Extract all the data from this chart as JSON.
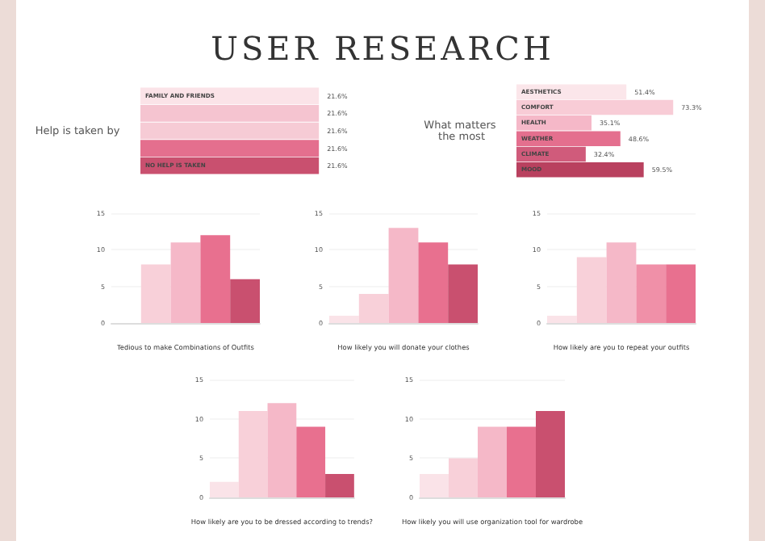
{
  "chart_data": [
    {
      "type": "bar",
      "orientation": "horizontal",
      "tick_labels": "y",
      "title": "USER RESEARCH",
      "ylabel": "Help is taken by",
      "categories": [
        "FAMILY AND FRIENDS",
        null,
        null,
        null,
        "NO HELP IS TAKEN"
      ],
      "values": [
        21.6,
        21.6,
        21.6,
        21.6,
        21.6
      ],
      "colors": [
        "#fbe3e8",
        "#f5c4d0",
        "#f6cbd5",
        "#e46f8e",
        "#c9506f"
      ],
      "value_labels": [
        "21.6%",
        "21.6%",
        "21.6%",
        "21.6%",
        "21.6%"
      ]
    },
    {
      "type": "bar",
      "orientation": "horizontal",
      "tick_labels": "y",
      "ylabel": "What matters the most",
      "categories": [
        "AESTHETICS",
        "COMFORT",
        "HEALTH",
        "WEATHER",
        "CLIMATE",
        "MOOD"
      ],
      "values": [
        51.4,
        73.3,
        35.1,
        48.6,
        32.4,
        59.5
      ],
      "colors": [
        "#fbe6ea",
        "#f8ccd6",
        "#f5b8c8",
        "#e46f8e",
        "#d05b7b",
        "#b9415f"
      ],
      "value_labels": [
        "51.4%",
        "73.3%",
        "35.1%",
        "48.6%",
        "32.4%",
        "59.5%"
      ]
    },
    {
      "type": "bar",
      "xlabel": "Tedious to make Combinations of Outfits",
      "categories": [
        null,
        null,
        null,
        null,
        null
      ],
      "values": [
        0,
        8,
        11,
        12,
        6
      ],
      "colors": [
        "#fae3e8",
        "#f8d0d9",
        "#f5b8c8",
        "#e8708f",
        "#c9506f"
      ],
      "ylim": [
        0,
        15
      ],
      "yticks": [
        0,
        5,
        10,
        15
      ],
      "grid": "y"
    },
    {
      "type": "bar",
      "xlabel": "How likely you will donate your clothes",
      "categories": [
        null,
        null,
        null,
        null,
        null
      ],
      "values": [
        1,
        4,
        13,
        11,
        8
      ],
      "colors": [
        "#fae3e8",
        "#f8d0d9",
        "#f5b8c8",
        "#e8708f",
        "#c9506f"
      ],
      "ylim": [
        0,
        15
      ],
      "yticks": [
        0,
        5,
        10,
        15
      ],
      "grid": "y"
    },
    {
      "type": "bar",
      "xlabel": "How likely are you to repeat your outfits",
      "categories": [
        null,
        null,
        null,
        null,
        null
      ],
      "values": [
        1,
        9,
        11,
        8,
        8
      ],
      "colors": [
        "#fae3e8",
        "#f8d0d9",
        "#f5b8c8",
        "#f090a8",
        "#e8708f"
      ],
      "ylim": [
        0,
        15
      ],
      "yticks": [
        0,
        5,
        10,
        15
      ],
      "grid": "y"
    },
    {
      "type": "bar",
      "xlabel": "How likely are you to be dressed according to trends?",
      "categories": [
        null,
        null,
        null,
        null,
        null
      ],
      "values": [
        2,
        11,
        12,
        9,
        3
      ],
      "colors": [
        "#fae3e8",
        "#f8d0d9",
        "#f5b8c8",
        "#e8708f",
        "#c9506f"
      ],
      "ylim": [
        0,
        15
      ],
      "yticks": [
        0,
        5,
        10,
        15
      ],
      "grid": "y"
    },
    {
      "type": "bar",
      "xlabel": "How likely you will use organization tool for wardrobe",
      "categories": [
        null,
        null,
        null,
        null,
        null
      ],
      "values": [
        3,
        5,
        9,
        9,
        11
      ],
      "colors": [
        "#fae3e8",
        "#f8d0d9",
        "#f5b8c8",
        "#e8708f",
        "#c9506f"
      ],
      "ylim": [
        0,
        15
      ],
      "yticks": [
        0,
        5,
        10,
        15
      ],
      "grid": "y"
    }
  ]
}
